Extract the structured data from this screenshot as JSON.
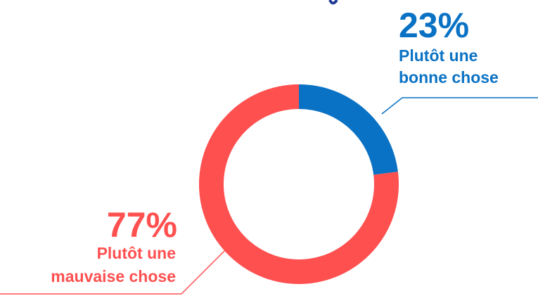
{
  "chart_data": {
    "type": "pie",
    "style": "donut",
    "title": "",
    "slices": [
      {
        "label_lines": [
          "Plutôt une",
          "bonne chose"
        ],
        "label": "Plutôt une bonne chose",
        "value": 23,
        "display": "23%",
        "color": "#0a72c4"
      },
      {
        "label_lines": [
          "Plutôt une",
          "mauvaise chose"
        ],
        "label": "Plutôt une mauvaise chose",
        "value": 77,
        "display": "77%",
        "color": "#ff5050"
      }
    ],
    "legend": "none",
    "start_angle": "12 o'clock",
    "direction": "clockwise"
  }
}
